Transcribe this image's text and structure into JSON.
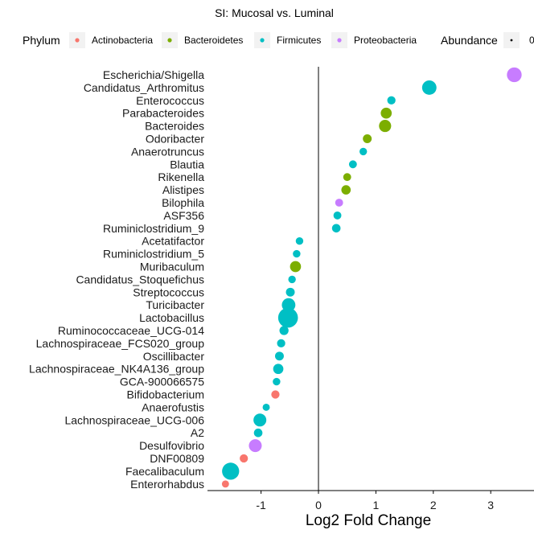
{
  "chart_data": {
    "type": "scatter",
    "title": "SI: Mucosal vs. Luminal",
    "xlabel": "Log2 Fold Change",
    "ylabel": "",
    "xlim": [
      -1.65,
      3.65
    ],
    "xticks": [
      -1,
      0,
      1,
      2,
      3
    ],
    "vline": 0,
    "grid": false,
    "legend_position": "top",
    "legend": {
      "phylum_title": "Phylum",
      "abundance_title": "Abundance",
      "abundance_label": "0",
      "phyla": [
        {
          "name": "Actinobacteria",
          "color": "#F8766D"
        },
        {
          "name": "Bacteroidetes",
          "color": "#7CAE00"
        },
        {
          "name": "Firmicutes",
          "color": "#00BFC4"
        },
        {
          "name": "Proteobacteria",
          "color": "#C77CFF"
        }
      ]
    },
    "points": [
      {
        "taxon": "Escherichia/Shigella",
        "x": 3.41,
        "phylum": "Proteobacteria",
        "abundance": 0.45
      },
      {
        "taxon": "Candidatus_Arthromitus",
        "x": 1.93,
        "phylum": "Firmicutes",
        "abundance": 0.42
      },
      {
        "taxon": "Enterococcus",
        "x": 1.27,
        "phylum": "Firmicutes",
        "abundance": 0.06
      },
      {
        "taxon": "Parabacteroides",
        "x": 1.18,
        "phylum": "Bacteroidetes",
        "abundance": 0.18
      },
      {
        "taxon": "Bacteroides",
        "x": 1.16,
        "phylum": "Bacteroidetes",
        "abundance": 0.25
      },
      {
        "taxon": "Odoribacter",
        "x": 0.85,
        "phylum": "Bacteroidetes",
        "abundance": 0.08
      },
      {
        "taxon": "Anaerotruncus",
        "x": 0.78,
        "phylum": "Firmicutes",
        "abundance": 0.04
      },
      {
        "taxon": "Blautia",
        "x": 0.6,
        "phylum": "Firmicutes",
        "abundance": 0.05
      },
      {
        "taxon": "Rikenella",
        "x": 0.5,
        "phylum": "Bacteroidetes",
        "abundance": 0.05
      },
      {
        "taxon": "Alistipes",
        "x": 0.48,
        "phylum": "Bacteroidetes",
        "abundance": 0.1
      },
      {
        "taxon": "Bilophila",
        "x": 0.36,
        "phylum": "Proteobacteria",
        "abundance": 0.05
      },
      {
        "taxon": "ASF356",
        "x": 0.33,
        "phylum": "Firmicutes",
        "abundance": 0.05
      },
      {
        "taxon": "Ruminiclostridium_9",
        "x": 0.31,
        "phylum": "Firmicutes",
        "abundance": 0.07
      },
      {
        "taxon": "Acetatifactor",
        "x": -0.33,
        "phylum": "Firmicutes",
        "abundance": 0.04
      },
      {
        "taxon": "Ruminiclostridium_5",
        "x": -0.38,
        "phylum": "Firmicutes",
        "abundance": 0.04
      },
      {
        "taxon": "Muribaculum",
        "x": -0.4,
        "phylum": "Bacteroidetes",
        "abundance": 0.18
      },
      {
        "taxon": "Candidatus_Stoquefichus",
        "x": -0.46,
        "phylum": "Firmicutes",
        "abundance": 0.04
      },
      {
        "taxon": "Streptococcus",
        "x": -0.49,
        "phylum": "Firmicutes",
        "abundance": 0.08
      },
      {
        "taxon": "Turicibacter",
        "x": -0.52,
        "phylum": "Firmicutes",
        "abundance": 0.35
      },
      {
        "taxon": "Lactobacillus",
        "x": -0.53,
        "phylum": "Firmicutes",
        "abundance": 1.0
      },
      {
        "taxon": "Ruminococcaceae_UCG-014",
        "x": -0.6,
        "phylum": "Firmicutes",
        "abundance": 0.09
      },
      {
        "taxon": "Lachnospiraceae_FCS020_group",
        "x": -0.65,
        "phylum": "Firmicutes",
        "abundance": 0.06
      },
      {
        "taxon": "Oscillibacter",
        "x": -0.68,
        "phylum": "Firmicutes",
        "abundance": 0.08
      },
      {
        "taxon": "Lachnospiraceae_NK4A136_group",
        "x": -0.7,
        "phylum": "Firmicutes",
        "abundance": 0.14
      },
      {
        "taxon": "GCA-900066575",
        "x": -0.73,
        "phylum": "Firmicutes",
        "abundance": 0.04
      },
      {
        "taxon": "Bifidobacterium",
        "x": -0.75,
        "phylum": "Actinobacteria",
        "abundance": 0.06
      },
      {
        "taxon": "Anaerofustis",
        "x": -0.91,
        "phylum": "Firmicutes",
        "abundance": 0.03
      },
      {
        "taxon": "Lachnospiraceae_UCG-006",
        "x": -1.02,
        "phylum": "Firmicutes",
        "abundance": 0.3
      },
      {
        "taxon": "A2",
        "x": -1.05,
        "phylum": "Firmicutes",
        "abundance": 0.07
      },
      {
        "taxon": "Desulfovibrio",
        "x": -1.1,
        "phylum": "Proteobacteria",
        "abundance": 0.3
      },
      {
        "taxon": "DNF00809",
        "x": -1.3,
        "phylum": "Actinobacteria",
        "abundance": 0.06
      },
      {
        "taxon": "Faecalibaculum",
        "x": -1.53,
        "phylum": "Firmicutes",
        "abundance": 0.68
      },
      {
        "taxon": "Enterorhabdus",
        "x": -1.62,
        "phylum": "Actinobacteria",
        "abundance": 0.03
      }
    ]
  }
}
